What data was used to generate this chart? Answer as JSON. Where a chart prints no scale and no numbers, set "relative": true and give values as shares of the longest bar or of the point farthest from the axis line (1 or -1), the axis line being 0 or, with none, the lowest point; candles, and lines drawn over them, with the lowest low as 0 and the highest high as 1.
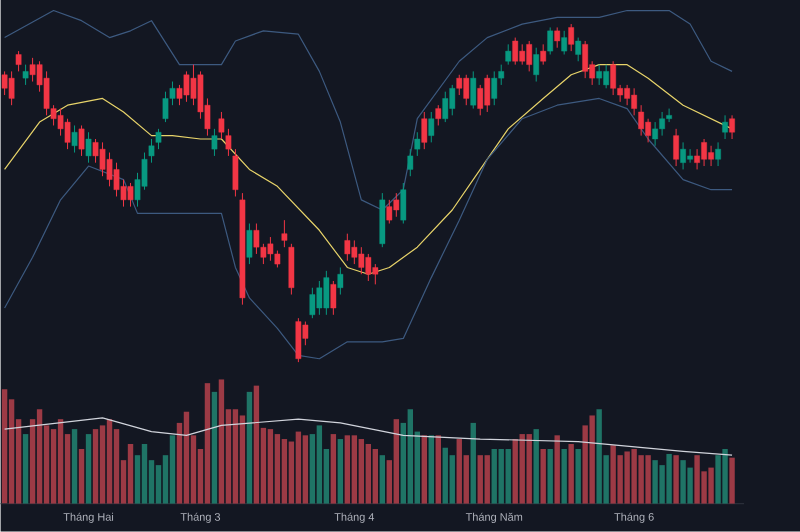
{
  "chart_data": [
    {
      "type": "candlestick",
      "relative": true,
      "tick_labels": false,
      "categories": [
        null,
        null,
        null,
        null,
        null,
        null,
        null,
        null,
        null,
        null,
        null,
        null,
        null,
        null,
        null,
        null,
        null,
        null,
        null,
        null,
        null,
        null,
        null,
        null,
        null,
        null,
        null,
        null,
        null,
        null,
        null,
        null,
        null,
        null,
        null,
        null,
        null,
        null,
        null,
        null,
        null,
        null,
        null,
        null,
        null,
        null,
        null,
        null,
        null,
        null,
        null,
        null,
        null,
        null,
        null,
        null,
        null,
        null,
        null,
        null,
        null,
        null,
        null,
        null,
        null,
        null,
        null,
        null,
        null,
        null,
        null,
        null,
        null,
        null,
        null,
        null,
        null,
        null,
        null,
        null,
        null,
        null,
        null,
        null,
        null,
        null,
        null,
        null,
        null,
        null,
        null,
        null,
        null,
        null,
        null,
        null,
        null,
        null,
        null,
        null,
        null,
        null,
        null,
        null,
        null
      ],
      "ohlc": [
        [
          0.85,
          0.86,
          0.79,
          0.81
        ],
        [
          0.84,
          0.86,
          0.76,
          0.78
        ],
        [
          0.91,
          0.92,
          0.86,
          0.88
        ],
        [
          0.84,
          0.88,
          0.82,
          0.86
        ],
        [
          0.88,
          0.9,
          0.83,
          0.85
        ],
        [
          0.88,
          0.89,
          0.8,
          0.82
        ],
        [
          0.84,
          0.86,
          0.73,
          0.75
        ],
        [
          0.75,
          0.76,
          0.7,
          0.72
        ],
        [
          0.73,
          0.75,
          0.67,
          0.69
        ],
        [
          0.71,
          0.72,
          0.63,
          0.65
        ],
        [
          0.64,
          0.7,
          0.62,
          0.68
        ],
        [
          0.69,
          0.7,
          0.61,
          0.63
        ],
        [
          0.61,
          0.68,
          0.59,
          0.66
        ],
        [
          0.65,
          0.66,
          0.59,
          0.61
        ],
        [
          0.63,
          0.65,
          0.55,
          0.57
        ],
        [
          0.6,
          0.62,
          0.52,
          0.54
        ],
        [
          0.57,
          0.59,
          0.49,
          0.51
        ],
        [
          0.52,
          0.54,
          0.46,
          0.48
        ],
        [
          0.52,
          0.53,
          0.46,
          0.48
        ],
        [
          0.48,
          0.56,
          0.46,
          0.54
        ],
        [
          0.52,
          0.62,
          0.51,
          0.6
        ],
        [
          0.61,
          0.66,
          0.59,
          0.64
        ],
        [
          0.65,
          0.69,
          0.63,
          0.68
        ],
        [
          0.72,
          0.8,
          0.71,
          0.78
        ],
        [
          0.78,
          0.83,
          0.76,
          0.81
        ],
        [
          0.81,
          0.82,
          0.76,
          0.78
        ],
        [
          0.85,
          0.86,
          0.77,
          0.79
        ],
        [
          0.84,
          0.88,
          0.76,
          0.78
        ],
        [
          0.85,
          0.86,
          0.72,
          0.74
        ],
        [
          0.76,
          0.78,
          0.67,
          0.69
        ],
        [
          0.63,
          0.69,
          0.61,
          0.67
        ],
        [
          0.72,
          0.74,
          0.66,
          0.68
        ],
        [
          0.67,
          0.69,
          0.61,
          0.63
        ],
        [
          0.61,
          0.63,
          0.49,
          0.51
        ],
        [
          0.48,
          0.5,
          0.17,
          0.19
        ],
        [
          0.31,
          0.41,
          0.29,
          0.39
        ],
        [
          0.39,
          0.41,
          0.32,
          0.34
        ],
        [
          0.34,
          0.35,
          0.29,
          0.31
        ],
        [
          0.35,
          0.37,
          0.3,
          0.32
        ],
        [
          0.32,
          0.33,
          0.28,
          0.29
        ],
        [
          0.38,
          0.42,
          0.34,
          0.36
        ],
        [
          0.34,
          0.35,
          0.2,
          0.22
        ],
        [
          0.12,
          0.13,
          0.0,
          0.01
        ],
        [
          0.11,
          0.12,
          0.05,
          0.07
        ],
        [
          0.14,
          0.22,
          0.13,
          0.2
        ],
        [
          0.16,
          0.24,
          0.14,
          0.22
        ],
        [
          0.16,
          0.27,
          0.14,
          0.25
        ],
        [
          0.23,
          0.24,
          0.14,
          0.16
        ],
        [
          0.22,
          0.28,
          0.2,
          0.26
        ],
        [
          0.36,
          0.38,
          0.3,
          0.32
        ],
        [
          0.34,
          0.36,
          0.29,
          0.31
        ],
        [
          0.32,
          0.34,
          0.26,
          0.28
        ],
        [
          0.31,
          0.32,
          0.24,
          0.26
        ],
        [
          0.28,
          0.29,
          0.23,
          0.26
        ],
        [
          0.35,
          0.5,
          0.34,
          0.48
        ],
        [
          0.46,
          0.48,
          0.41,
          0.42
        ],
        [
          0.48,
          0.5,
          0.43,
          0.45
        ],
        [
          0.42,
          0.53,
          0.41,
          0.51
        ],
        [
          0.57,
          0.63,
          0.55,
          0.61
        ],
        [
          0.63,
          0.68,
          0.61,
          0.66
        ],
        [
          0.72,
          0.74,
          0.63,
          0.65
        ],
        [
          0.67,
          0.74,
          0.65,
          0.72
        ],
        [
          0.75,
          0.76,
          0.7,
          0.72
        ],
        [
          0.72,
          0.8,
          0.71,
          0.78
        ],
        [
          0.75,
          0.82,
          0.73,
          0.81
        ],
        [
          0.84,
          0.85,
          0.79,
          0.81
        ],
        [
          0.84,
          0.85,
          0.76,
          0.78
        ],
        [
          0.76,
          0.86,
          0.75,
          0.84
        ],
        [
          0.81,
          0.82,
          0.73,
          0.75
        ],
        [
          0.84,
          0.85,
          0.74,
          0.76
        ],
        [
          0.78,
          0.86,
          0.76,
          0.84
        ],
        [
          0.84,
          0.88,
          0.82,
          0.86
        ],
        [
          0.89,
          0.94,
          0.88,
          0.92
        ],
        [
          0.95,
          0.96,
          0.88,
          0.89
        ],
        [
          0.92,
          0.94,
          0.88,
          0.89
        ],
        [
          0.94,
          0.95,
          0.86,
          0.88
        ],
        [
          0.85,
          0.93,
          0.83,
          0.91
        ],
        [
          0.92,
          0.94,
          0.88,
          0.89
        ],
        [
          0.92,
          0.99,
          0.91,
          0.98
        ],
        [
          0.98,
          0.99,
          0.93,
          0.95
        ],
        [
          0.92,
          0.98,
          0.91,
          0.96
        ],
        [
          0.99,
          1.0,
          0.92,
          0.94
        ],
        [
          0.91,
          0.96,
          0.89,
          0.95
        ],
        [
          0.94,
          0.95,
          0.84,
          0.86
        ],
        [
          0.88,
          0.89,
          0.82,
          0.84
        ],
        [
          0.84,
          0.88,
          0.82,
          0.86
        ],
        [
          0.82,
          0.88,
          0.81,
          0.86
        ],
        [
          0.88,
          0.89,
          0.79,
          0.81
        ],
        [
          0.81,
          0.82,
          0.77,
          0.79
        ],
        [
          0.81,
          0.82,
          0.76,
          0.78
        ],
        [
          0.79,
          0.81,
          0.73,
          0.75
        ],
        [
          0.74,
          0.76,
          0.67,
          0.69
        ],
        [
          0.71,
          0.72,
          0.65,
          0.67
        ],
        [
          0.66,
          0.71,
          0.64,
          0.69
        ],
        [
          0.69,
          0.74,
          0.67,
          0.72
        ],
        [
          0.72,
          0.75,
          0.71,
          0.73
        ],
        [
          0.67,
          0.69,
          0.58,
          0.6
        ],
        [
          0.59,
          0.65,
          0.57,
          0.63
        ],
        [
          0.6,
          0.63,
          0.59,
          0.61
        ],
        [
          0.61,
          0.63,
          0.57,
          0.59
        ],
        [
          0.65,
          0.66,
          0.58,
          0.6
        ],
        [
          0.62,
          0.64,
          0.58,
          0.6
        ],
        [
          0.6,
          0.65,
          0.58,
          0.63
        ],
        [
          0.68,
          0.73,
          0.66,
          0.71
        ],
        [
          0.72,
          0.73,
          0.66,
          0.68
        ]
      ],
      "colors": [
        "#f23645",
        "#f23645",
        "#f23645",
        "#089981",
        "#f23645",
        "#f23645",
        "#f23645",
        "#f23645",
        "#f23645",
        "#f23645",
        "#089981",
        "#f23645",
        "#089981",
        "#f23645",
        "#f23645",
        "#f23645",
        "#f23645",
        "#f23645",
        "#f23645",
        "#089981",
        "#089981",
        "#089981",
        "#089981",
        "#089981",
        "#089981",
        "#f23645",
        "#f23645",
        "#f23645",
        "#f23645",
        "#f23645",
        "#089981",
        "#f23645",
        "#f23645",
        "#f23645",
        "#f23645",
        "#089981",
        "#f23645",
        "#f23645",
        "#f23645",
        "#f23645",
        "#f23645",
        "#f23645",
        "#f23645",
        "#f23645",
        "#089981",
        "#089981",
        "#089981",
        "#f23645",
        "#089981",
        "#f23645",
        "#f23645",
        "#f23645",
        "#f23645",
        "#f23645",
        "#089981",
        "#f23645",
        "#f23645",
        "#089981",
        "#089981",
        "#089981",
        "#f23645",
        "#089981",
        "#f23645",
        "#089981",
        "#089981",
        "#f23645",
        "#f23645",
        "#089981",
        "#f23645",
        "#f23645",
        "#089981",
        "#089981",
        "#089981",
        "#f23645",
        "#f23645",
        "#f23645",
        "#089981",
        "#f23645",
        "#089981",
        "#f23645",
        "#089981",
        "#f23645",
        "#089981",
        "#f23645",
        "#f23645",
        "#089981",
        "#089981",
        "#f23645",
        "#f23645",
        "#f23645",
        "#f23645",
        "#f23645",
        "#f23645",
        "#089981",
        "#089981",
        "#089981",
        "#f23645",
        "#089981",
        "#089981",
        "#f23645",
        "#f23645",
        "#f23645",
        "#089981",
        "#089981",
        "#f23645"
      ],
      "series": [
        {
          "type": "line",
          "color": "#3d5a80",
          "values": [
            0.96,
            null,
            null,
            null,
            null,
            null,
            null,
            1.04,
            null,
            null,
            null,
            1.01,
            null,
            null,
            null,
            0.96,
            null,
            null,
            0.98,
            null,
            null,
            1.01,
            null,
            null,
            null,
            0.88,
            null,
            null,
            null,
            null,
            null,
            0.88,
            null,
            0.95,
            null,
            null,
            null,
            0.98,
            null,
            null,
            null,
            null,
            0.97,
            null,
            null,
            0.86,
            null,
            null,
            0.71,
            null,
            null,
            0.48,
            null,
            null,
            0.45,
            null,
            null,
            0.51,
            null,
            0.72,
            null,
            null,
            null,
            null,
            null,
            0.89,
            null,
            null,
            null,
            0.96,
            null,
            null,
            null,
            null,
            1.0,
            null,
            null,
            null,
            null,
            1.02,
            null,
            null,
            null,
            null,
            null,
            1.02,
            null,
            null,
            null,
            1.04,
            null,
            null,
            null,
            null,
            null,
            1.04,
            null,
            null,
            1.0,
            null,
            null,
            0.89,
            null,
            null,
            0.86
          ]
        },
        {
          "type": "line",
          "color": "#e8d46a",
          "values": [
            0.57,
            null,
            null,
            null,
            null,
            0.71,
            null,
            null,
            null,
            0.76,
            null,
            null,
            null,
            null,
            0.78,
            null,
            null,
            0.74,
            null,
            null,
            null,
            0.67,
            null,
            null,
            0.67,
            null,
            null,
            null,
            0.66,
            null,
            null,
            0.66,
            null,
            null,
            null,
            0.57,
            null,
            null,
            null,
            0.52,
            null,
            null,
            null,
            null,
            null,
            0.39,
            null,
            null,
            null,
            0.28,
            null,
            null,
            0.26,
            null,
            null,
            0.28,
            null,
            null,
            null,
            0.34,
            null,
            null,
            null,
            null,
            0.45,
            null,
            null,
            null,
            0.57,
            null,
            null,
            null,
            0.69,
            null,
            null,
            null,
            null,
            0.78,
            null,
            null,
            null,
            0.85,
            null,
            null,
            null,
            0.88,
            null,
            null,
            null,
            0.88,
            null,
            null,
            0.84,
            null,
            null,
            null,
            null,
            0.76,
            null,
            null,
            null,
            0.72,
            null,
            null,
            0.69
          ]
        },
        {
          "type": "line",
          "color": "#3d5a80",
          "values": [
            0.16,
            null,
            null,
            null,
            0.31,
            null,
            null,
            null,
            0.48,
            null,
            null,
            null,
            0.58,
            null,
            null,
            null,
            null,
            0.54,
            null,
            0.44,
            null,
            null,
            0.44,
            null,
            null,
            null,
            null,
            0.44,
            null,
            null,
            null,
            0.44,
            null,
            0.28,
            null,
            0.19,
            null,
            null,
            null,
            0.1,
            null,
            null,
            0.02,
            null,
            null,
            0.01,
            null,
            null,
            null,
            0.06,
            null,
            null,
            null,
            null,
            0.06,
            null,
            null,
            0.07,
            null,
            null,
            null,
            0.25,
            null,
            null,
            null,
            0.42,
            null,
            null,
            null,
            0.6,
            null,
            null,
            null,
            null,
            0.72,
            null,
            null,
            null,
            null,
            0.76,
            null,
            null,
            null,
            null,
            null,
            0.78,
            null,
            null,
            null,
            0.75,
            null,
            null,
            0.66,
            null,
            null,
            null,
            null,
            0.54,
            null,
            null,
            null,
            0.51,
            null,
            null,
            0.51
          ]
        }
      ]
    },
    {
      "type": "bar",
      "relative": true,
      "tick_labels": "x",
      "categories": [
        null,
        null,
        null,
        null,
        null,
        null,
        null,
        null,
        null,
        null,
        null,
        null,
        "Tháng Hai",
        null,
        null,
        null,
        null,
        null,
        null,
        null,
        null,
        null,
        null,
        null,
        null,
        null,
        null,
        null,
        "Tháng 3",
        null,
        null,
        null,
        null,
        null,
        null,
        null,
        null,
        null,
        null,
        null,
        null,
        null,
        null,
        null,
        null,
        null,
        null,
        null,
        null,
        null,
        "Tháng 4",
        null,
        null,
        null,
        null,
        null,
        null,
        null,
        null,
        null,
        null,
        null,
        null,
        null,
        null,
        null,
        null,
        null,
        null,
        null,
        "Tháng Năm",
        null,
        null,
        null,
        null,
        null,
        null,
        null,
        null,
        null,
        null,
        null,
        null,
        null,
        null,
        null,
        null,
        null,
        null,
        null,
        "Tháng 6",
        null,
        null,
        null,
        null,
        null,
        null,
        null,
        null,
        null,
        null,
        null,
        null,
        null,
        null
      ],
      "series": [
        {
          "type": "bar",
          "values": [
            0.92,
            0.84,
            0.68,
            0.56,
            0.68,
            0.76,
            0.63,
            0.6,
            0.68,
            0.56,
            0.6,
            0.44,
            0.56,
            0.6,
            0.63,
            0.68,
            0.6,
            0.35,
            0.48,
            0.39,
            0.48,
            0.35,
            0.31,
            0.39,
            0.55,
            0.65,
            0.74,
            0.55,
            0.44,
            0.97,
            0.9,
            1.0,
            0.76,
            0.76,
            0.71,
            0.9,
            0.95,
            0.61,
            0.6,
            0.56,
            0.52,
            0.5,
            0.58,
            0.55,
            0.56,
            0.63,
            0.44,
            0.56,
            0.52,
            0.55,
            0.55,
            0.52,
            0.48,
            0.44,
            0.39,
            0.35,
            0.68,
            0.65,
            0.76,
            0.58,
            0.55,
            0.55,
            0.55,
            0.45,
            0.39,
            0.52,
            0.39,
            0.65,
            0.39,
            0.39,
            0.44,
            0.44,
            0.44,
            0.52,
            0.56,
            0.56,
            0.6,
            0.44,
            0.44,
            0.55,
            0.44,
            0.48,
            0.44,
            0.63,
            0.71,
            0.76,
            0.39,
            0.47,
            0.39,
            0.42,
            0.44,
            0.39,
            0.39,
            0.35,
            0.31,
            0.4,
            0.39,
            0.35,
            0.29,
            0.39,
            0.26,
            0.29,
            0.39,
            0.44,
            0.37
          ],
          "colors": [
            "#9c3a45",
            "#9c3a45",
            "#9c3a45",
            "#1f7466",
            "#9c3a45",
            "#9c3a45",
            "#9c3a45",
            "#9c3a45",
            "#9c3a45",
            "#9c3a45",
            "#1f7466",
            "#9c3a45",
            "#1f7466",
            "#9c3a45",
            "#9c3a45",
            "#9c3a45",
            "#9c3a45",
            "#9c3a45",
            "#9c3a45",
            "#1f7466",
            "#1f7466",
            "#1f7466",
            "#1f7466",
            "#1f7466",
            "#1f7466",
            "#9c3a45",
            "#9c3a45",
            "#9c3a45",
            "#9c3a45",
            "#9c3a45",
            "#1f7466",
            "#9c3a45",
            "#9c3a45",
            "#9c3a45",
            "#9c3a45",
            "#1f7466",
            "#9c3a45",
            "#9c3a45",
            "#9c3a45",
            "#9c3a45",
            "#9c3a45",
            "#9c3a45",
            "#9c3a45",
            "#9c3a45",
            "#1f7466",
            "#1f7466",
            "#1f7466",
            "#9c3a45",
            "#1f7466",
            "#9c3a45",
            "#9c3a45",
            "#9c3a45",
            "#9c3a45",
            "#9c3a45",
            "#1f7466",
            "#9c3a45",
            "#9c3a45",
            "#1f7466",
            "#1f7466",
            "#1f7466",
            "#9c3a45",
            "#1f7466",
            "#9c3a45",
            "#1f7466",
            "#1f7466",
            "#9c3a45",
            "#9c3a45",
            "#1f7466",
            "#9c3a45",
            "#9c3a45",
            "#1f7466",
            "#1f7466",
            "#1f7466",
            "#9c3a45",
            "#9c3a45",
            "#9c3a45",
            "#1f7466",
            "#9c3a45",
            "#1f7466",
            "#9c3a45",
            "#1f7466",
            "#9c3a45",
            "#1f7466",
            "#9c3a45",
            "#9c3a45",
            "#1f7466",
            "#1f7466",
            "#9c3a45",
            "#9c3a45",
            "#9c3a45",
            "#9c3a45",
            "#9c3a45",
            "#9c3a45",
            "#1f7466",
            "#1f7466",
            "#1f7466",
            "#9c3a45",
            "#1f7466",
            "#1f7466",
            "#9c3a45",
            "#9c3a45",
            "#9c3a45",
            "#1f7466",
            "#1f7466",
            "#9c3a45"
          ]
        },
        {
          "type": "line",
          "color": "#d1d4dc",
          "values": [
            0.6,
            null,
            null,
            null,
            null,
            null,
            null,
            null,
            null,
            null,
            null,
            null,
            null,
            null,
            0.69,
            null,
            null,
            null,
            null,
            null,
            null,
            0.58,
            null,
            null,
            null,
            null,
            0.55,
            null,
            null,
            null,
            null,
            0.63,
            null,
            null,
            null,
            null,
            null,
            null,
            null,
            null,
            null,
            null,
            0.68,
            null,
            null,
            null,
            null,
            null,
            0.65,
            null,
            null,
            null,
            null,
            null,
            null,
            null,
            null,
            0.55,
            null,
            null,
            null,
            null,
            null,
            null,
            null,
            null,
            null,
            null,
            0.52,
            null,
            null,
            null,
            null,
            null,
            null,
            null,
            null,
            null,
            null,
            null,
            null,
            null,
            0.5,
            null,
            null,
            null,
            null,
            null,
            null,
            null,
            null,
            null,
            null,
            null,
            null,
            null,
            null,
            0.42,
            null,
            null,
            null,
            null,
            null,
            null,
            0.39
          ]
        }
      ]
    }
  ]
}
